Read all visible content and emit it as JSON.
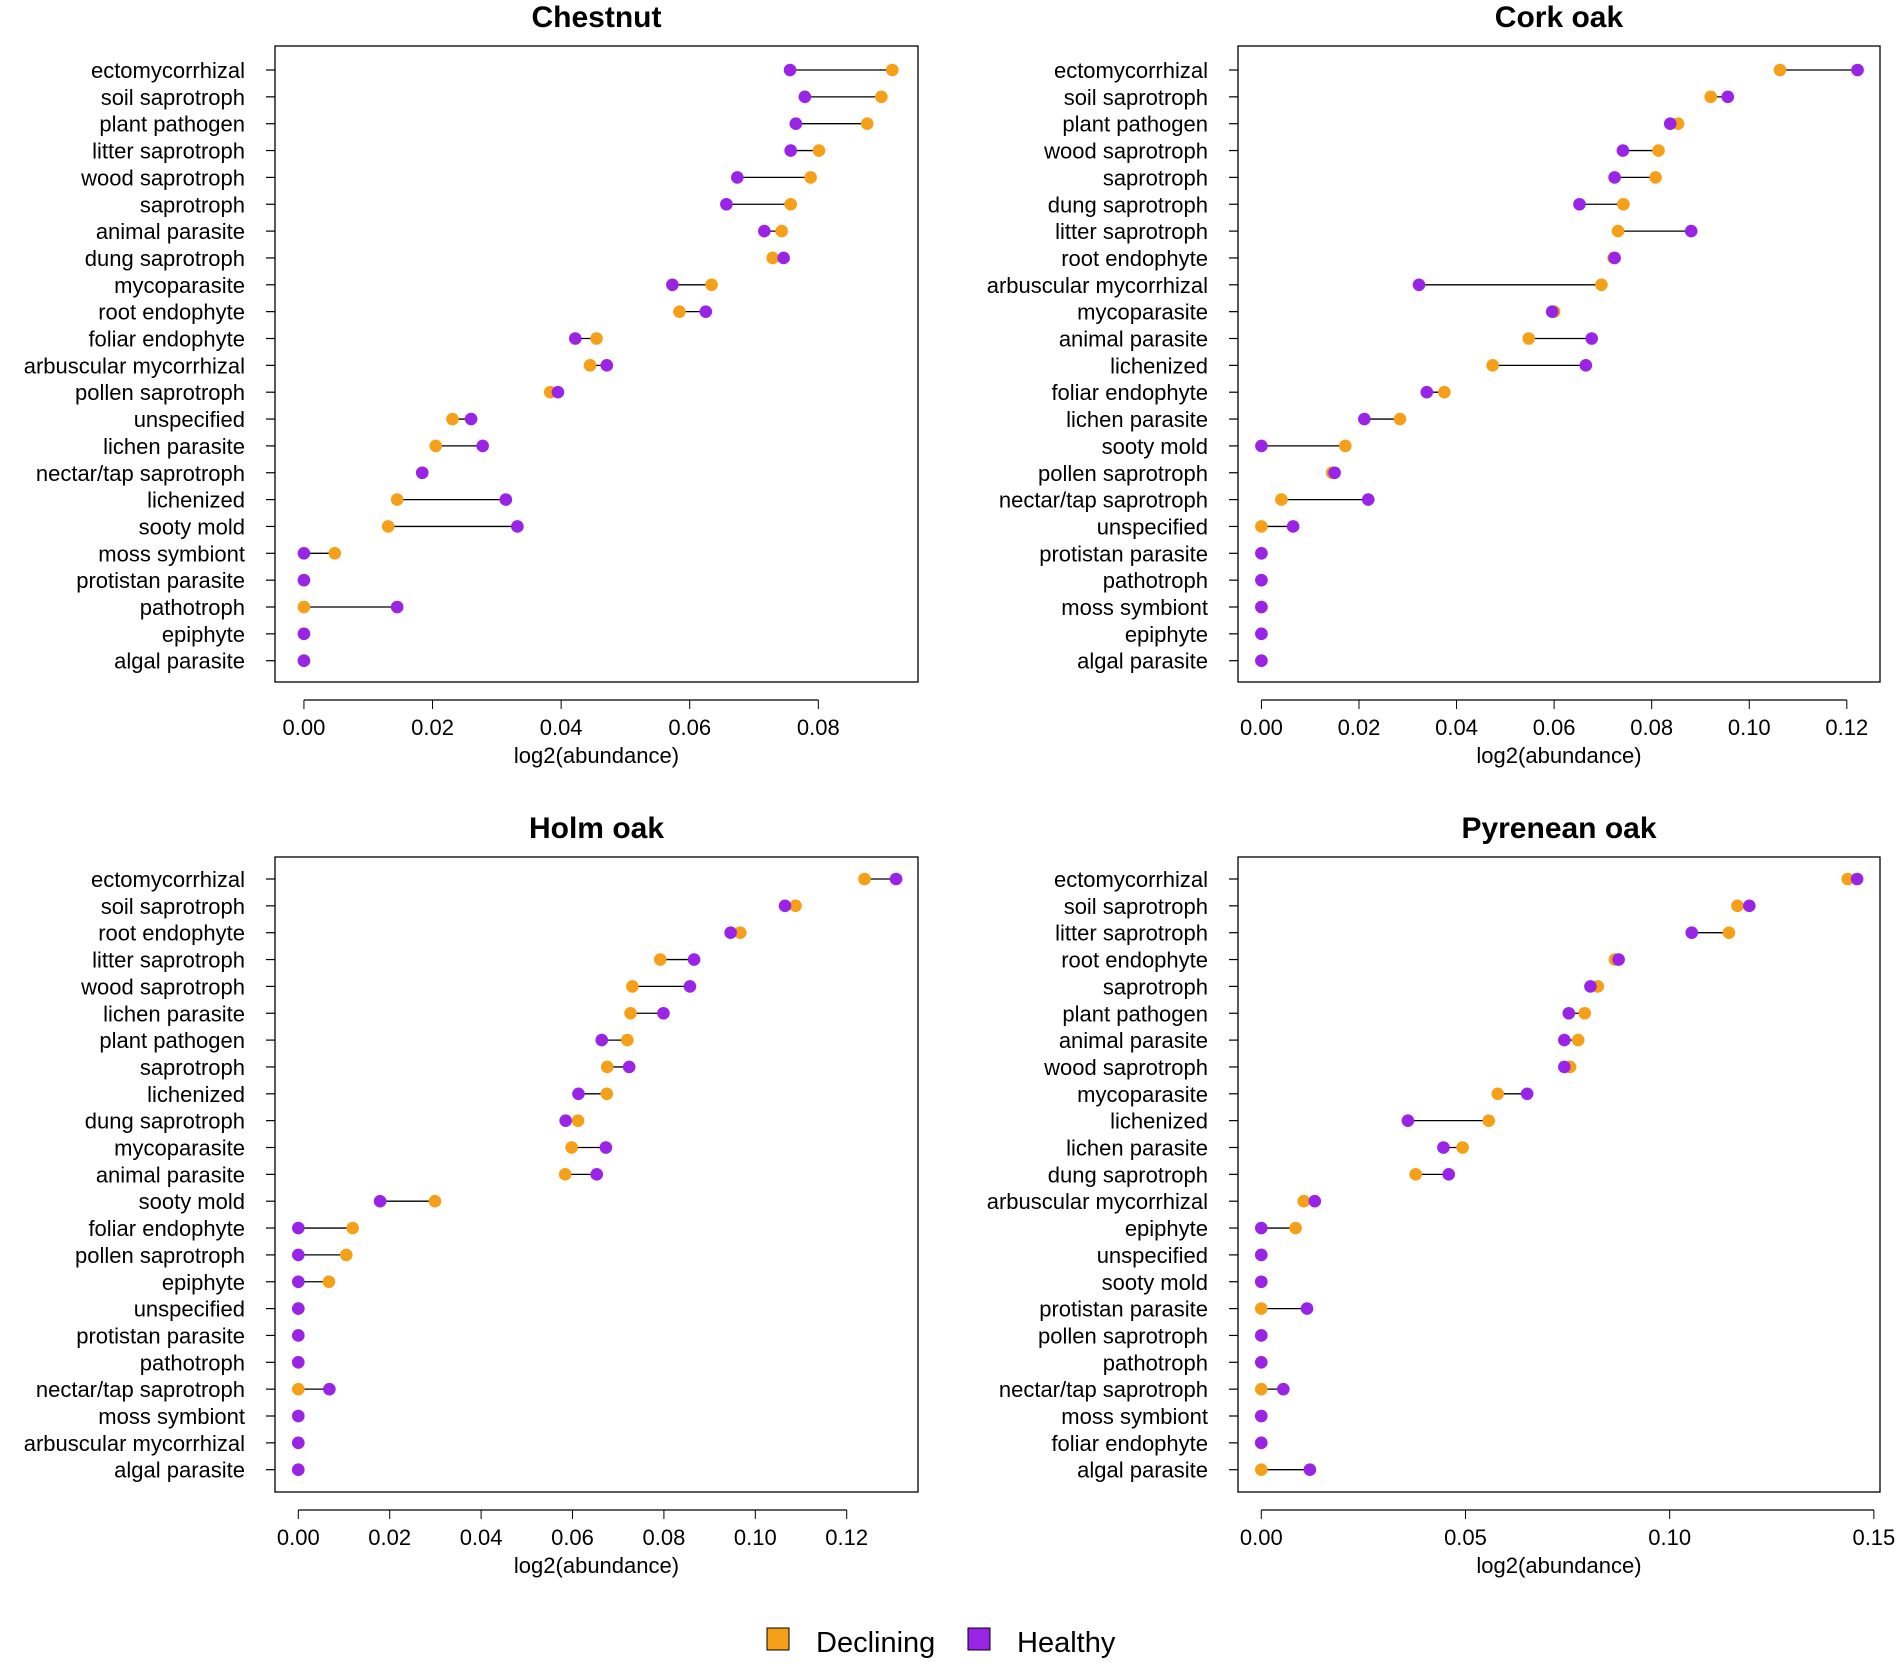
{
  "chart_data": [
    {
      "type": "dumbbell",
      "title": "Chestnut",
      "xlabel": "log2(abundance)",
      "xlim": [
        -0.0045,
        0.0955
      ],
      "xticks": [
        0.0,
        0.02,
        0.04,
        0.06,
        0.08
      ],
      "xtick_labels": [
        "0.00",
        "0.02",
        "0.04",
        "0.06",
        "0.08"
      ],
      "categories": [
        "ectomycorrhizal",
        "soil saprotroph",
        "plant pathogen",
        "litter saprotroph",
        "wood saprotroph",
        "saprotroph",
        "animal parasite",
        "dung saprotroph",
        "mycoparasite",
        "root endophyte",
        "foliar endophyte",
        "arbuscular mycorrhizal",
        "pollen saprotroph",
        "unspecified",
        "lichen parasite",
        "nectar/tap saprotroph",
        "lichenized",
        "sooty mold",
        "moss symbiont",
        "protistan parasite",
        "pathotroph",
        "epiphyte",
        "algal parasite"
      ],
      "series": [
        {
          "name": "Declining",
          "values": [
            0.0915,
            0.0898,
            0.0876,
            0.0801,
            0.0788,
            0.0757,
            0.0743,
            0.0729,
            0.0634,
            0.0584,
            0.0455,
            0.0445,
            0.0383,
            0.0231,
            0.0205,
            0.0184,
            0.0145,
            0.0131,
            0.0048,
            0.0,
            0.0,
            0.0,
            0.0
          ]
        },
        {
          "name": "Healthy",
          "values": [
            0.0756,
            0.0779,
            0.0765,
            0.0757,
            0.0674,
            0.0657,
            0.0716,
            0.0746,
            0.0573,
            0.0625,
            0.0422,
            0.0471,
            0.0395,
            0.026,
            0.0278,
            0.0184,
            0.0314,
            0.0332,
            0.0,
            0.0,
            0.0145,
            0.0,
            0.0
          ]
        }
      ]
    },
    {
      "type": "dumbbell",
      "title": "Cork oak",
      "xlabel": "log2(abundance)",
      "xlim": [
        -0.0048,
        0.1268
      ],
      "xticks": [
        0.0,
        0.02,
        0.04,
        0.06,
        0.08,
        0.1,
        0.12
      ],
      "xtick_labels": [
        "0.00",
        "0.02",
        "0.04",
        "0.06",
        "0.08",
        "0.10",
        "0.12"
      ],
      "categories": [
        "ectomycorrhizal",
        "soil saprotroph",
        "plant pathogen",
        "wood saprotroph",
        "saprotroph",
        "dung saprotroph",
        "litter saprotroph",
        "root endophyte",
        "arbuscular mycorrhizal",
        "mycoparasite",
        "animal parasite",
        "lichenized",
        "foliar endophyte",
        "lichen parasite",
        "sooty mold",
        "pollen saprotroph",
        "nectar/tap saprotroph",
        "unspecified",
        "protistan parasite",
        "pathotroph",
        "moss symbiont",
        "epiphyte",
        "algal parasite"
      ],
      "series": [
        {
          "name": "Declining",
          "values": [
            0.1063,
            0.0921,
            0.0854,
            0.0814,
            0.0808,
            0.0742,
            0.0731,
            0.0722,
            0.0697,
            0.06,
            0.0548,
            0.0474,
            0.0375,
            0.0284,
            0.0172,
            0.0145,
            0.0041,
            0.0,
            0.0,
            0.0,
            0.0,
            0.0,
            0.0
          ]
        },
        {
          "name": "Healthy",
          "values": [
            0.1222,
            0.0956,
            0.0838,
            0.0741,
            0.0724,
            0.0652,
            0.0881,
            0.0724,
            0.0323,
            0.0596,
            0.0677,
            0.0665,
            0.0339,
            0.0211,
            0.0,
            0.015,
            0.0219,
            0.0065,
            0.0,
            0.0,
            0.0,
            0.0,
            0.0
          ]
        }
      ]
    },
    {
      "type": "dumbbell",
      "title": "Holm oak",
      "xlabel": "log2(abundance)",
      "xlim": [
        -0.0051,
        0.1356
      ],
      "xticks": [
        0.0,
        0.02,
        0.04,
        0.06,
        0.08,
        0.1,
        0.12
      ],
      "xtick_labels": [
        "0.00",
        "0.02",
        "0.04",
        "0.06",
        "0.08",
        "0.10",
        "0.12"
      ],
      "categories": [
        "ectomycorrhizal",
        "soil saprotroph",
        "root endophyte",
        "litter saprotroph",
        "wood saprotroph",
        "lichen parasite",
        "plant pathogen",
        "saprotroph",
        "lichenized",
        "dung saprotroph",
        "mycoparasite",
        "animal parasite",
        "sooty mold",
        "foliar endophyte",
        "pollen saprotroph",
        "epiphyte",
        "unspecified",
        "protistan parasite",
        "pathotroph",
        "nectar/tap saprotroph",
        "moss symbiont",
        "arbuscular mycorrhizal",
        "algal parasite"
      ],
      "series": [
        {
          "name": "Declining",
          "values": [
            0.1239,
            0.1088,
            0.0967,
            0.0792,
            0.0731,
            0.0727,
            0.072,
            0.0676,
            0.0675,
            0.0612,
            0.0598,
            0.0584,
            0.0299,
            0.0119,
            0.0105,
            0.0067,
            0.0,
            0.0,
            0.0,
            0.0,
            0.0,
            0.0,
            0.0
          ]
        },
        {
          "name": "Healthy",
          "values": [
            0.1308,
            0.1065,
            0.0946,
            0.0866,
            0.0857,
            0.0799,
            0.0664,
            0.0724,
            0.0613,
            0.0585,
            0.0673,
            0.0653,
            0.0179,
            0.0,
            0.0,
            0.0,
            0.0,
            0.0,
            0.0,
            0.0068,
            0.0,
            0.0,
            0.0
          ]
        }
      ]
    },
    {
      "type": "dumbbell",
      "title": "Pyrenean oak",
      "xlabel": "log2(abundance)",
      "xlim": [
        -0.0057,
        0.1515
      ],
      "xticks": [
        0.0,
        0.05,
        0.1,
        0.15
      ],
      "xtick_labels": [
        "0.00",
        "0.05",
        "0.10",
        "0.15"
      ],
      "categories": [
        "ectomycorrhizal",
        "soil saprotroph",
        "litter saprotroph",
        "root endophyte",
        "saprotroph",
        "plant pathogen",
        "animal parasite",
        "wood saprotroph",
        "mycoparasite",
        "lichenized",
        "lichen parasite",
        "dung saprotroph",
        "arbuscular mycorrhizal",
        "epiphyte",
        "unspecified",
        "sooty mold",
        "protistan parasite",
        "pollen saprotroph",
        "pathotroph",
        "nectar/tap saprotroph",
        "moss symbiont",
        "foliar endophyte",
        "algal parasite"
      ],
      "series": [
        {
          "name": "Declining",
          "values": [
            0.1436,
            0.1166,
            0.1145,
            0.0866,
            0.0824,
            0.0792,
            0.0776,
            0.0756,
            0.0579,
            0.0557,
            0.0493,
            0.0378,
            0.0104,
            0.0084,
            0.0,
            0.0,
            0.0,
            0.0,
            0.0,
            0.0,
            0.0,
            0.0,
            0.0
          ]
        },
        {
          "name": "Healthy",
          "values": [
            0.1459,
            0.1195,
            0.1054,
            0.0875,
            0.0806,
            0.0753,
            0.0742,
            0.0742,
            0.0651,
            0.0359,
            0.0446,
            0.0459,
            0.0131,
            0.0,
            0.0,
            0.0,
            0.0112,
            0.0,
            0.0,
            0.0054,
            0.0,
            0.0,
            0.0119
          ]
        }
      ]
    }
  ],
  "legend": {
    "position": "bottom-center",
    "items": [
      {
        "label": "Declining",
        "color": "#f5a018"
      },
      {
        "label": "Healthy",
        "color": "#9a24e6"
      }
    ]
  },
  "colors": {
    "declining": "#f5a018",
    "healthy": "#9a24e6",
    "segment": "#000000"
  }
}
